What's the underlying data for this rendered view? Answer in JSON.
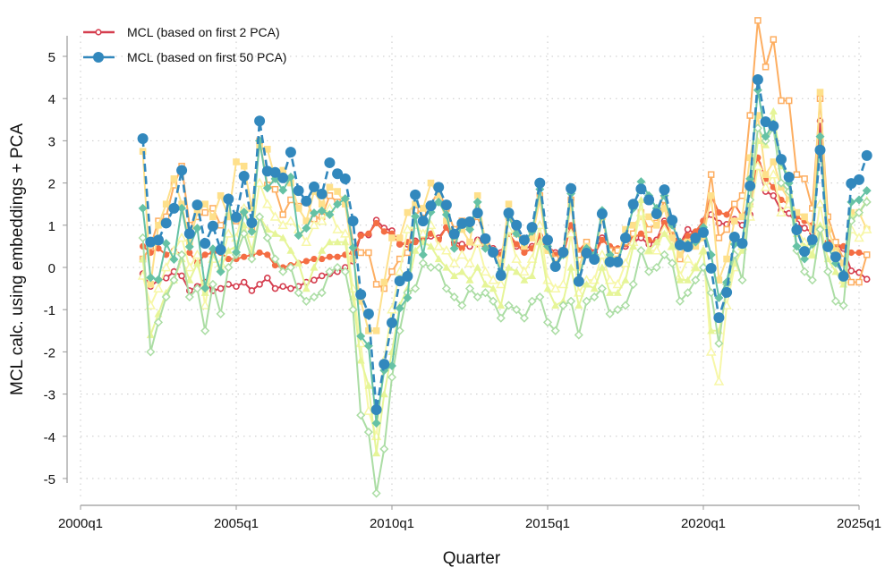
{
  "chart_data": {
    "type": "line",
    "title": "",
    "xlabel": "Quarter",
    "ylabel": "MCL calc. using embeddings + PCA",
    "x_start": "2002q1",
    "x_frequency": "quarterly",
    "xlim": [
      "2000q1",
      "2025q1"
    ],
    "ylim": [
      -5,
      5
    ],
    "xticks": [
      "2000q1",
      "2005q1",
      "2010q1",
      "2015q1",
      "2020q1",
      "2025q1"
    ],
    "yticks": [
      "-5",
      "-4",
      "-3",
      "-2",
      "-1",
      "0",
      "1",
      "2",
      "3",
      "4",
      "5"
    ],
    "grid": true,
    "legend_position": "top-left",
    "series": [
      {
        "name": "MCL (based on first 2 PCA)",
        "color": "#d53e4f",
        "marker": "hollow-circle",
        "in_legend": true,
        "values": [
          -0.15,
          -0.45,
          -0.3,
          -0.25,
          -0.1,
          -0.2,
          -0.55,
          -0.45,
          -0.35,
          -0.55,
          -0.5,
          -0.4,
          -0.45,
          -0.35,
          -0.55,
          -0.4,
          -0.25,
          -0.5,
          -0.45,
          -0.5,
          -0.45,
          -0.35,
          -0.3,
          -0.2,
          -0.15,
          -0.1,
          0.0,
          0.15,
          0.77,
          0.77,
          1.12,
          0.93,
          0.87,
          0.55,
          0.55,
          0.63,
          0.63,
          0.74,
          0.7,
          0.95,
          0.6,
          0.55,
          0.5,
          0.65,
          0.5,
          0.45,
          0.35,
          0.8,
          0.5,
          0.45,
          0.5,
          0.6,
          0.5,
          0.35,
          0.4,
          0.95,
          0.35,
          0.55,
          0.35,
          0.7,
          0.45,
          0.4,
          0.5,
          0.6,
          0.7,
          0.55,
          0.65,
          1.1,
          0.7,
          0.55,
          0.9,
          0.8,
          1.1,
          1.25,
          1.05,
          1.02,
          1.14,
          1.0,
          1.25,
          2.45,
          1.8,
          1.7,
          1.35,
          1.28,
          1.04,
          0.93,
          0.83,
          3.47,
          0.55,
          0.52,
          0.45,
          -0.08,
          -0.12,
          -0.28
        ]
      },
      {
        "color": "#f46d43",
        "marker": "filled-circle",
        "values": [
          0.5,
          0.35,
          0.45,
          0.3,
          0.4,
          0.3,
          0.35,
          0.1,
          0.3,
          0.35,
          0.35,
          0.2,
          0.2,
          0.25,
          0.3,
          0.35,
          0.3,
          0.05,
          0.0,
          0.05,
          0.1,
          0.15,
          0.2,
          0.2,
          0.25,
          0.25,
          0.3,
          0.35,
          0.75,
          0.8,
          1.05,
          0.85,
          0.8,
          0.55,
          0.6,
          0.6,
          0.65,
          0.8,
          0.65,
          0.95,
          0.55,
          0.45,
          0.6,
          0.55,
          0.5,
          0.4,
          0.3,
          0.8,
          0.55,
          0.35,
          0.45,
          0.75,
          0.5,
          0.3,
          0.3,
          1.0,
          0.4,
          0.6,
          0.3,
          0.65,
          0.5,
          0.45,
          0.55,
          0.7,
          0.8,
          0.65,
          0.6,
          1.05,
          0.75,
          0.6,
          0.75,
          0.85,
          1.1,
          1.7,
          1.3,
          1.25,
          1.5,
          1.2,
          1.5,
          2.6,
          2.1,
          1.9,
          1.6,
          1.5,
          1.2,
          1.1,
          1.0,
          3.1,
          0.6,
          0.55,
          0.5,
          0.35,
          0.35,
          0.3
        ]
      },
      {
        "color": "#fdae61",
        "marker": "hollow-square",
        "values": [
          0.2,
          0.5,
          1.1,
          1.2,
          1.95,
          2.4,
          1.0,
          1.2,
          1.3,
          1.4,
          1.0,
          1.2,
          1.1,
          1.35,
          0.95,
          3.0,
          1.95,
          1.85,
          1.25,
          1.6,
          1.45,
          1.6,
          1.15,
          1.2,
          1.7,
          1.55,
          1.6,
          0.6,
          0.35,
          0.35,
          -0.4,
          -0.5,
          -0.1,
          0.2,
          0.35,
          1.35,
          1.3,
          1.5,
          1.8,
          1.4,
          0.9,
          1.1,
          1.0,
          1.2,
          0.7,
          0.4,
          0.2,
          1.2,
          0.9,
          0.6,
          0.8,
          1.7,
          0.6,
          0.2,
          0.4,
          1.6,
          0.3,
          0.6,
          0.2,
          1.2,
          0.4,
          0.4,
          0.6,
          0.8,
          1.3,
          0.9,
          1.05,
          1.6,
          0.9,
          0.2,
          0.6,
          0.7,
          0.9,
          2.2,
          0.7,
          0.9,
          1.5,
          1.7,
          3.6,
          5.85,
          4.75,
          5.4,
          3.95,
          3.95,
          2.2,
          2.1,
          1.4,
          4.0,
          1.2,
          0.6,
          0.2,
          -0.35,
          -0.35,
          0.3
        ]
      },
      {
        "color": "#fee08b",
        "marker": "filled-square",
        "values": [
          2.75,
          -0.4,
          1.0,
          1.5,
          2.1,
          1.5,
          0.6,
          1.3,
          1.5,
          1.2,
          1.7,
          1.2,
          2.5,
          2.4,
          1.4,
          2.85,
          2.8,
          2.1,
          2.3,
          2.0,
          1.4,
          1.1,
          1.8,
          1.5,
          1.9,
          1.8,
          1.5,
          0.2,
          -0.8,
          -1.5,
          -1.5,
          -0.35,
          0.7,
          0.7,
          1.3,
          1.5,
          1.4,
          2.0,
          1.7,
          1.1,
          0.7,
          0.9,
          0.6,
          1.7,
          0.6,
          0.4,
          0.1,
          1.5,
          0.8,
          0.5,
          0.7,
          1.6,
          0.4,
          0.1,
          0.3,
          1.5,
          0.0,
          0.5,
          0.2,
          1.2,
          0.3,
          0.2,
          0.9,
          1.0,
          1.2,
          1.2,
          1.0,
          1.4,
          0.7,
          0.3,
          0.6,
          0.5,
          0.7,
          1.7,
          -0.3,
          0.2,
          1.1,
          1.2,
          2.6,
          3.6,
          2.2,
          2.5,
          1.9,
          1.6,
          1.3,
          1.2,
          0.9,
          4.15,
          0.9,
          0.4,
          0.1,
          1.3,
          1.3,
          0.9
        ]
      },
      {
        "color": "#f7f7a8",
        "marker": "hollow-triangle",
        "values": [
          -0.2,
          -0.9,
          -0.5,
          0.0,
          0.4,
          0.7,
          0.0,
          0.3,
          -0.9,
          0.2,
          0.1,
          0.8,
          0.7,
          1.4,
          0.8,
          2.0,
          1.5,
          1.2,
          1.0,
          1.1,
          0.9,
          0.6,
          1.0,
          1.1,
          1.4,
          0.9,
          0.8,
          -0.5,
          -1.8,
          -3.4,
          -4.0,
          -2.2,
          -1.0,
          -0.1,
          0.9,
          1.0,
          0.8,
          1.0,
          0.5,
          0.4,
          0.1,
          0.3,
          0.1,
          0.6,
          -0.1,
          -0.3,
          -0.4,
          0.9,
          0.2,
          -0.1,
          0.2,
          1.0,
          -0.3,
          -0.5,
          -0.4,
          0.8,
          -0.6,
          -0.3,
          -0.3,
          0.3,
          -0.3,
          -0.4,
          0.1,
          0.6,
          1.3,
          0.4,
          0.4,
          0.9,
          0.5,
          -0.2,
          0.2,
          0.0,
          0.4,
          -2.0,
          -2.7,
          -0.9,
          0.0,
          0.5,
          1.2,
          2.4,
          1.9,
          2.2,
          1.3,
          1.5,
          0.9,
          0.6,
          0.3,
          1.5,
          0.5,
          0.3,
          -0.3,
          0.9,
          0.7,
          0.9
        ]
      },
      {
        "color": "#e6f598",
        "marker": "filled-triangle",
        "values": [
          0.2,
          -1.6,
          -1.1,
          -0.6,
          -0.3,
          0.2,
          -0.3,
          0.1,
          -0.6,
          0.3,
          0.0,
          0.4,
          0.5,
          1.0,
          0.4,
          1.2,
          0.9,
          0.8,
          0.7,
          0.4,
          0.1,
          -0.5,
          0.0,
          0.4,
          0.6,
          0.6,
          0.6,
          -0.7,
          -2.2,
          -2.8,
          -4.4,
          -3.0,
          -2.0,
          -0.9,
          -0.5,
          0.4,
          0.6,
          0.5,
          0.2,
          0.0,
          -0.2,
          -0.1,
          -0.3,
          0.0,
          -0.4,
          -0.5,
          -0.9,
          0.0,
          -0.1,
          -0.3,
          -0.2,
          0.6,
          -0.5,
          -0.9,
          -0.8,
          0.0,
          -0.9,
          -0.4,
          -0.5,
          0.0,
          -0.6,
          -0.6,
          -0.3,
          0.5,
          1.6,
          0.4,
          0.6,
          0.8,
          0.5,
          -0.3,
          -0.3,
          0.0,
          0.4,
          -1.5,
          -1.5,
          -0.6,
          0.1,
          0.4,
          1.5,
          3.0,
          2.9,
          3.7,
          2.4,
          2.2,
          0.8,
          0.5,
          0.3,
          1.0,
          0.2,
          -0.1,
          -0.4,
          1.2,
          1.3,
          1.6
        ]
      },
      {
        "color": "#abdda4",
        "marker": "hollow-diamond",
        "values": [
          0.7,
          -2.0,
          -1.3,
          -0.7,
          -0.3,
          0.3,
          -0.7,
          -0.5,
          -1.5,
          -0.4,
          -1.1,
          0.0,
          0.3,
          0.8,
          0.2,
          1.2,
          0.7,
          0.2,
          -0.1,
          0.0,
          -0.6,
          -0.8,
          -0.7,
          -0.6,
          -0.1,
          0.0,
          -0.1,
          -1.0,
          -3.5,
          -3.9,
          -5.35,
          -4.3,
          -2.6,
          -1.5,
          -0.6,
          -0.5,
          0.1,
          0.0,
          0.0,
          -0.5,
          -0.7,
          -0.9,
          -0.5,
          -0.7,
          -0.6,
          -0.8,
          -1.2,
          -0.9,
          -1.0,
          -1.2,
          -0.8,
          -0.7,
          -1.3,
          -1.5,
          -0.9,
          -0.8,
          -1.6,
          -0.8,
          -0.7,
          -0.5,
          -1.1,
          -1.0,
          -0.9,
          -0.4,
          0.4,
          -0.1,
          0.0,
          0.3,
          0.1,
          -0.8,
          -0.6,
          -0.3,
          0.0,
          -0.6,
          -1.8,
          -0.4,
          0.3,
          -0.3,
          1.6,
          3.3,
          3.0,
          3.3,
          2.0,
          1.8,
          0.4,
          -0.1,
          -0.3,
          0.9,
          -0.1,
          -0.8,
          -0.9,
          1.1,
          1.3,
          1.55
        ]
      },
      {
        "color": "#66c2a5",
        "marker": "filled-diamond",
        "values": [
          1.4,
          -0.24,
          -0.29,
          0.57,
          0.19,
          1.4,
          0.49,
          0.93,
          -0.49,
          0.44,
          -0.1,
          1.65,
          0.36,
          1.31,
          0.85,
          3.0,
          1.88,
          2.1,
          1.83,
          2.14,
          0.76,
          0.93,
          1.29,
          1.34,
          1.25,
          1.5,
          1.63,
          0.47,
          -1.63,
          -1.86,
          -3.69,
          -2.44,
          -2.33,
          -0.97,
          -0.72,
          1.21,
          0.3,
          1.31,
          1.55,
          1.25,
          0.45,
          1.05,
          0.9,
          1.55,
          0.45,
          0.35,
          -0.1,
          1.2,
          0.8,
          0.6,
          0.85,
          1.85,
          0.5,
          0.0,
          0.3,
          1.75,
          -0.3,
          0.45,
          0.3,
          1.35,
          0.3,
          0.1,
          0.75,
          1.4,
          2.03,
          1.7,
          1.4,
          1.7,
          1.0,
          0.6,
          0.55,
          0.6,
          0.95,
          0.3,
          -0.72,
          -0.35,
          0.55,
          0.6,
          2.1,
          4.2,
          3.1,
          3.4,
          2.5,
          2.0,
          0.5,
          0.2,
          0.55,
          3.1,
          0.5,
          0.1,
          -0.15,
          1.55,
          1.6,
          1.82
        ]
      },
      {
        "name": "MCL (based on first 50 PCA)",
        "color": "#3288bd",
        "marker": "filled-circle-large",
        "line": "dashed",
        "in_legend": true,
        "values": [
          3.05,
          0.6,
          0.65,
          1.05,
          1.4,
          2.3,
          0.8,
          1.48,
          0.57,
          0.98,
          0.42,
          1.62,
          1.19,
          2.16,
          1.06,
          3.47,
          2.28,
          2.25,
          2.12,
          2.73,
          1.82,
          1.57,
          1.91,
          1.74,
          2.48,
          2.22,
          2.1,
          1.1,
          -0.64,
          -1.1,
          -3.37,
          -2.29,
          -1.31,
          -0.32,
          -0.21,
          1.72,
          1.1,
          1.46,
          1.9,
          1.48,
          0.79,
          1.04,
          1.08,
          1.29,
          0.68,
          0.36,
          -0.19,
          1.29,
          1.0,
          0.65,
          0.95,
          2.0,
          0.65,
          0.02,
          0.36,
          1.87,
          -0.33,
          0.34,
          0.19,
          1.27,
          0.13,
          0.13,
          0.7,
          1.5,
          1.86,
          1.6,
          1.27,
          1.84,
          1.12,
          0.53,
          0.49,
          0.7,
          0.83,
          -0.02,
          -1.19,
          -0.59,
          0.72,
          0.57,
          1.93,
          4.45,
          3.45,
          3.35,
          2.56,
          2.14,
          0.89,
          0.38,
          0.66,
          2.78,
          0.49,
          0.25,
          -0.21,
          1.99,
          2.08,
          2.65
        ]
      }
    ]
  }
}
